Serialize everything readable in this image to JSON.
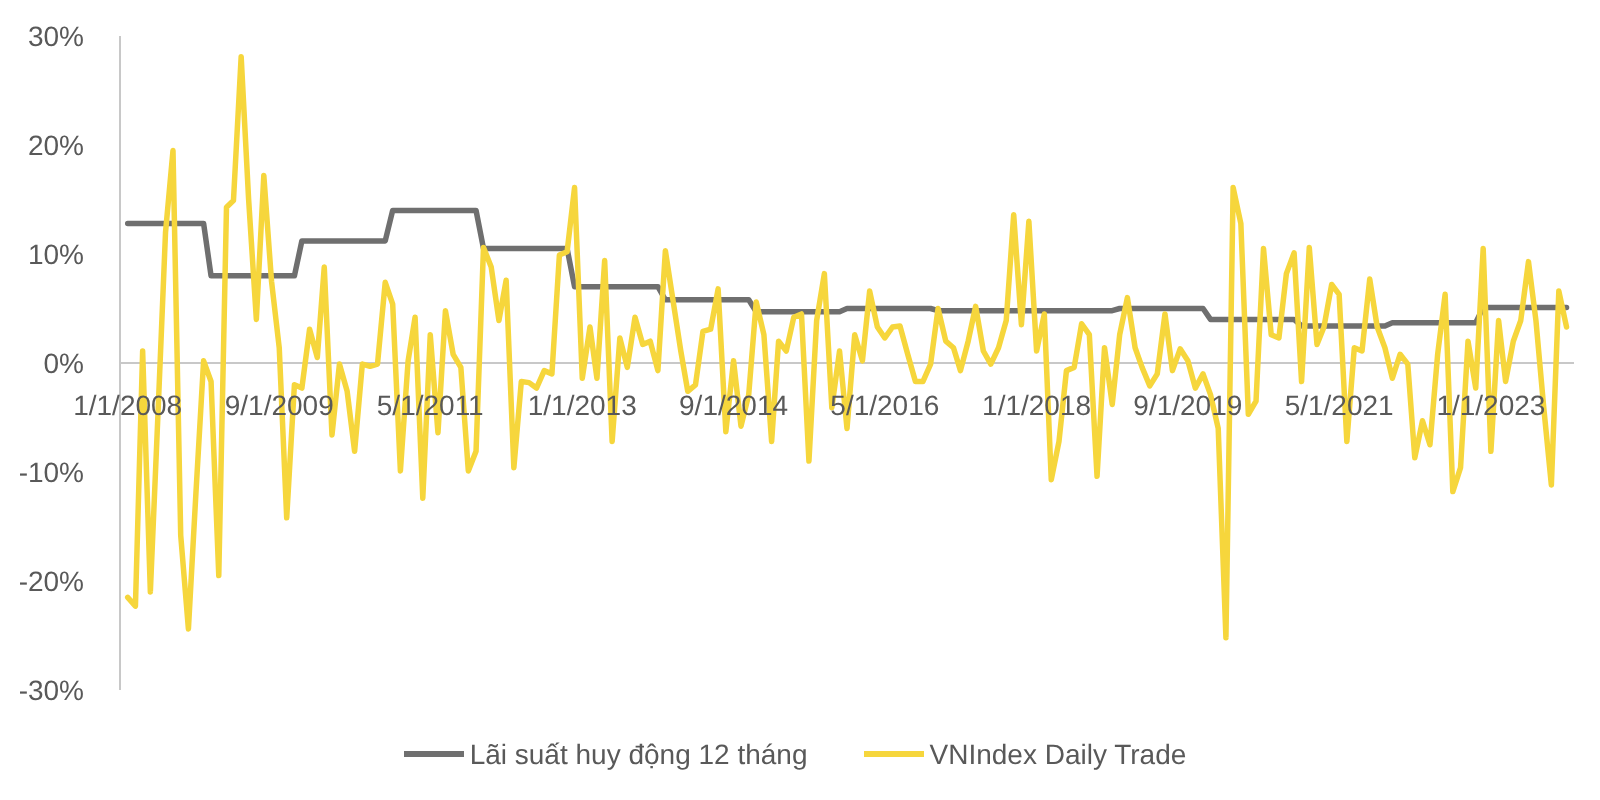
{
  "chart_data": {
    "type": "line",
    "x": [
      "2008-01",
      "2008-02",
      "2008-03",
      "2008-04",
      "2008-05",
      "2008-06",
      "2008-07",
      "2008-08",
      "2008-09",
      "2008-10",
      "2008-11",
      "2008-12",
      "2009-01",
      "2009-02",
      "2009-03",
      "2009-04",
      "2009-05",
      "2009-06",
      "2009-07",
      "2009-08",
      "2009-09",
      "2009-10",
      "2009-11",
      "2009-12",
      "2010-01",
      "2010-02",
      "2010-03",
      "2010-04",
      "2010-05",
      "2010-06",
      "2010-07",
      "2010-08",
      "2010-09",
      "2010-10",
      "2010-11",
      "2010-12",
      "2011-01",
      "2011-02",
      "2011-03",
      "2011-04",
      "2011-05",
      "2011-06",
      "2011-07",
      "2011-08",
      "2011-09",
      "2011-10",
      "2011-11",
      "2011-12",
      "2012-01",
      "2012-02",
      "2012-03",
      "2012-04",
      "2012-05",
      "2012-06",
      "2012-07",
      "2012-08",
      "2012-09",
      "2012-10",
      "2012-11",
      "2012-12",
      "2013-01",
      "2013-02",
      "2013-03",
      "2013-04",
      "2013-05",
      "2013-06",
      "2013-07",
      "2013-08",
      "2013-09",
      "2013-10",
      "2013-11",
      "2013-12",
      "2014-01",
      "2014-02",
      "2014-03",
      "2014-04",
      "2014-05",
      "2014-06",
      "2014-07",
      "2014-08",
      "2014-09",
      "2014-10",
      "2014-11",
      "2014-12",
      "2015-01",
      "2015-02",
      "2015-03",
      "2015-04",
      "2015-05",
      "2015-06",
      "2015-07",
      "2015-08",
      "2015-09",
      "2015-10",
      "2015-11",
      "2015-12",
      "2016-01",
      "2016-02",
      "2016-03",
      "2016-04",
      "2016-05",
      "2016-06",
      "2016-07",
      "2016-08",
      "2016-09",
      "2016-10",
      "2016-11",
      "2016-12",
      "2017-01",
      "2017-02",
      "2017-03",
      "2017-04",
      "2017-05",
      "2017-06",
      "2017-07",
      "2017-08",
      "2017-09",
      "2017-10",
      "2017-11",
      "2017-12",
      "2018-01",
      "2018-02",
      "2018-03",
      "2018-04",
      "2018-05",
      "2018-06",
      "2018-07",
      "2018-08",
      "2018-09",
      "2018-10",
      "2018-11",
      "2018-12",
      "2019-01",
      "2019-02",
      "2019-03",
      "2019-04",
      "2019-05",
      "2019-06",
      "2019-07",
      "2019-08",
      "2019-09",
      "2019-10",
      "2019-11",
      "2019-12",
      "2020-01",
      "2020-02",
      "2020-03",
      "2020-04",
      "2020-05",
      "2020-06",
      "2020-07",
      "2020-08",
      "2020-09",
      "2020-10",
      "2020-11",
      "2020-12",
      "2021-01",
      "2021-02",
      "2021-03",
      "2021-04",
      "2021-05",
      "2021-06",
      "2021-07",
      "2021-08",
      "2021-09",
      "2021-10",
      "2021-11",
      "2021-12",
      "2022-01",
      "2022-02",
      "2022-03",
      "2022-04",
      "2022-05",
      "2022-06",
      "2022-07",
      "2022-08",
      "2022-09",
      "2022-10",
      "2022-11",
      "2022-12",
      "2023-01",
      "2023-02",
      "2023-03",
      "2023-04",
      "2023-05",
      "2023-06",
      "2023-07",
      "2023-08",
      "2023-09",
      "2023-10",
      "2023-11"
    ],
    "xlim": [
      "2007-12-01",
      "2023-12-01"
    ],
    "xticks": [
      {
        "value": "2008-01-01",
        "label": "1/1/2008"
      },
      {
        "value": "2009-09-01",
        "label": "9/1/2009"
      },
      {
        "value": "2011-05-01",
        "label": "5/1/2011"
      },
      {
        "value": "2013-01-01",
        "label": "1/1/2013"
      },
      {
        "value": "2014-09-01",
        "label": "9/1/2014"
      },
      {
        "value": "2016-05-01",
        "label": "5/1/2016"
      },
      {
        "value": "2018-01-01",
        "label": "1/1/2018"
      },
      {
        "value": "2019-09-01",
        "label": "9/1/2019"
      },
      {
        "value": "2021-05-01",
        "label": "5/1/2021"
      },
      {
        "value": "2023-01-01",
        "label": "1/1/2023"
      }
    ],
    "ylim": [
      -30,
      30
    ],
    "yticks": [
      {
        "value": -30,
        "label": "-30%"
      },
      {
        "value": -20,
        "label": "-20%"
      },
      {
        "value": -10,
        "label": "-10%"
      },
      {
        "value": 0,
        "label": "0%"
      },
      {
        "value": 10,
        "label": "10%"
      },
      {
        "value": 20,
        "label": "20%"
      },
      {
        "value": 30,
        "label": "30%"
      }
    ],
    "legend": "bottom",
    "series": [
      {
        "name": "Lãi suất huy động 12 tháng",
        "color": "#6f6f6f",
        "x": [
          "2008-01",
          "2008-11",
          "2008-12",
          "2009-11",
          "2009-12",
          "2010-11",
          "2010-12",
          "2011-11",
          "2011-12",
          "2012-11",
          "2012-12",
          "2013-11",
          "2013-12",
          "2014-11",
          "2014-12",
          "2015-11",
          "2015-12",
          "2016-11",
          "2016-12",
          "2018-11",
          "2018-12",
          "2019-11",
          "2019-12",
          "2020-11",
          "2020-12",
          "2021-11",
          "2021-12",
          "2022-11",
          "2022-12",
          "2023-11"
        ],
        "values": [
          12.8,
          12.8,
          8.0,
          8.0,
          11.2,
          11.2,
          14.0,
          14.0,
          10.5,
          10.5,
          7.0,
          7.0,
          5.8,
          5.8,
          4.7,
          4.7,
          5.0,
          5.0,
          4.8,
          4.8,
          5.0,
          5.0,
          4.0,
          4.0,
          3.4,
          3.4,
          3.7,
          3.7,
          5.1,
          5.1
        ]
      },
      {
        "name": "VNIndex Daily Trade",
        "color": "#f6d63c",
        "values": [
          -21.5,
          -22.3,
          1.1,
          -21.0,
          -5.0,
          12.0,
          19.5,
          -15.8,
          -24.4,
          -12.0,
          0.2,
          -1.7,
          -19.5,
          14.3,
          14.9,
          28.1,
          15.0,
          4.0,
          17.2,
          7.5,
          1.4,
          -14.2,
          -2.0,
          -2.3,
          3.1,
          0.5,
          8.8,
          -6.6,
          -0.1,
          -2.6,
          -8.1,
          -0.1,
          -0.3,
          -0.1,
          7.4,
          5.4,
          -9.9,
          0.2,
          4.2,
          -12.4,
          2.6,
          -6.4,
          4.8,
          0.8,
          -0.4,
          -9.9,
          -8.1,
          10.6,
          8.8,
          3.9,
          7.6,
          -9.6,
          -1.7,
          -1.8,
          -2.3,
          -0.7,
          -1.0,
          9.9,
          10.2,
          16.1,
          -1.4,
          3.3,
          -1.4,
          9.4,
          -7.2,
          2.3,
          -0.4,
          4.2,
          1.7,
          2.0,
          -0.7,
          10.3,
          5.7,
          1.1,
          -2.6,
          -2.0,
          2.9,
          3.1,
          6.8,
          -6.3,
          0.2,
          -5.8,
          -2.9,
          5.6,
          2.6,
          -7.2,
          2.0,
          1.1,
          4.2,
          4.5,
          -9.0,
          3.9,
          8.2,
          -4.1,
          1.1,
          -6.0,
          2.6,
          0.2,
          6.6,
          3.3,
          2.3,
          3.3,
          3.4,
          0.8,
          -1.7,
          -1.7,
          -0.1,
          5.0,
          2.0,
          1.4,
          -0.7,
          2.0,
          5.2,
          1.1,
          -0.1,
          1.4,
          3.9,
          13.6,
          3.5,
          13.0,
          1.1,
          4.5,
          -10.7,
          -7.2,
          -0.7,
          -0.4,
          3.6,
          2.6,
          -10.4,
          1.4,
          -3.8,
          2.6,
          6.0,
          1.4,
          -0.4,
          -2.1,
          -1.0,
          4.5,
          -0.7,
          1.3,
          0.2,
          -2.3,
          -1.0,
          -2.9,
          -6.0,
          -25.2,
          16.1,
          12.8,
          -4.7,
          -3.5,
          10.5,
          2.6,
          2.3,
          8.2,
          10.1,
          -1.7,
          10.6,
          1.7,
          3.3,
          7.2,
          6.3,
          -7.2,
          1.4,
          1.1,
          7.7,
          3.3,
          1.4,
          -1.4,
          0.8,
          -0.1,
          -8.7,
          -5.3,
          -7.5,
          0.8,
          6.3,
          -11.8,
          -9.6,
          2.0,
          -2.3,
          10.5,
          -8.1,
          3.9,
          -1.7,
          2.0,
          3.9,
          9.3,
          3.9,
          -4.0,
          -11.2,
          6.6,
          3.3
        ]
      }
    ]
  }
}
